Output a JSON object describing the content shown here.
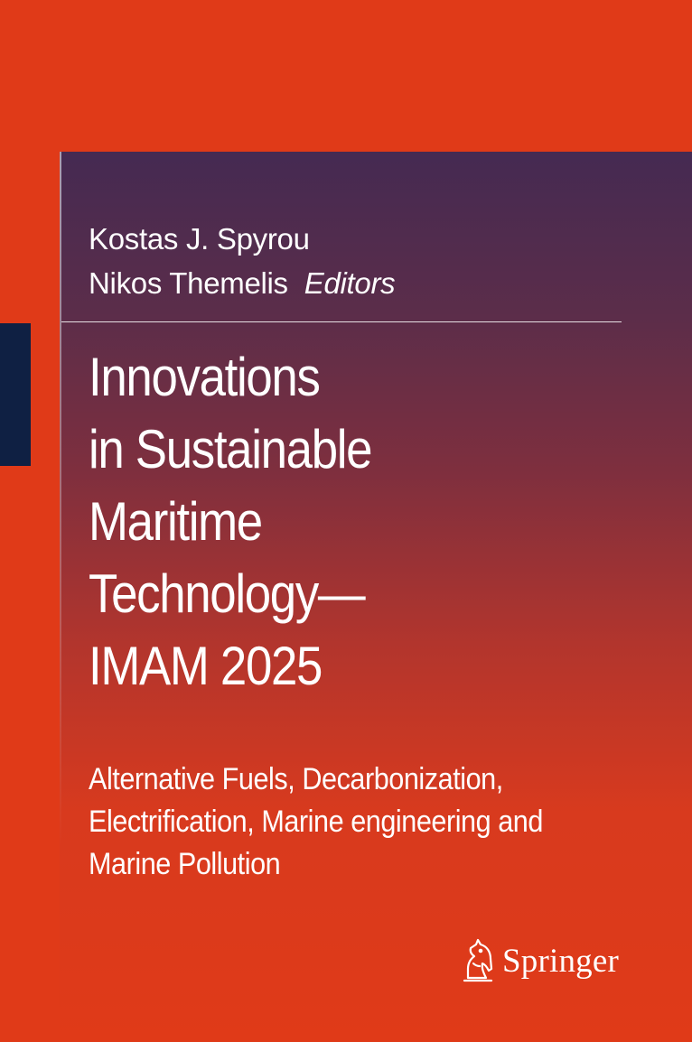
{
  "editors": {
    "names": [
      "Kostas J. Spyrou",
      "Nikos Themelis"
    ],
    "role": "Editors"
  },
  "title": {
    "lines": [
      "Innovations",
      "in Sustainable",
      "Maritime",
      "Technology—",
      "IMAM 2025"
    ]
  },
  "subtitle": {
    "lines": [
      "Alternative Fuels, Decarbonization,",
      "Electrification, Marine engineering and",
      "Marine Pollution"
    ]
  },
  "publisher": {
    "name": "Springer",
    "logo_icon": "springer-horse-icon"
  },
  "colors": {
    "background": "#E03A18",
    "panel_top": "#452A52",
    "spine_mark": "#0F2043",
    "text": "#FFFFFF"
  }
}
